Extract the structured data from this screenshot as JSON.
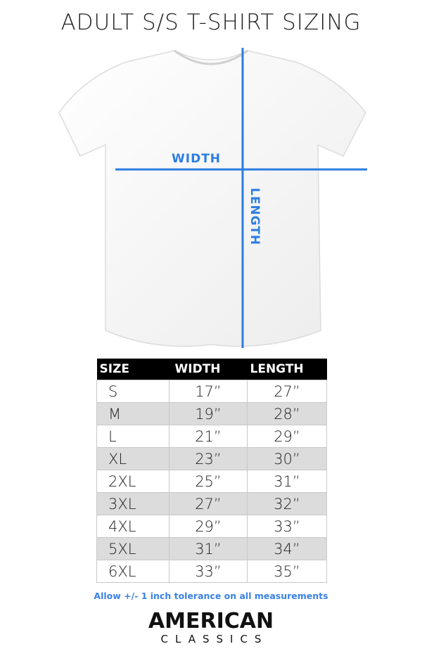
{
  "title": "ADULT S/S T-SHIRT SIZING",
  "diagram": {
    "width_label": "WIDTH",
    "length_label": "LENGTH",
    "line_color": "#2a7de1"
  },
  "table": {
    "headers": [
      "SIZE",
      "WIDTH",
      "LENGTH"
    ],
    "rows": [
      [
        "S",
        "17”",
        "27”"
      ],
      [
        "M",
        "19”",
        "28”"
      ],
      [
        "L",
        "21”",
        "29”"
      ],
      [
        "XL",
        "23”",
        "30”"
      ],
      [
        "2XL",
        "25”",
        "31”"
      ],
      [
        "3XL",
        "27”",
        "32”"
      ],
      [
        "4XL",
        "29”",
        "33”"
      ],
      [
        "5XL",
        "31”",
        "34”"
      ],
      [
        "6XL",
        "33”",
        "35”"
      ]
    ]
  },
  "note": "Allow +/- 1 inch tolerance on all measurements",
  "logo": {
    "line1": "AMERICAN",
    "line2": "CLASSICS"
  }
}
